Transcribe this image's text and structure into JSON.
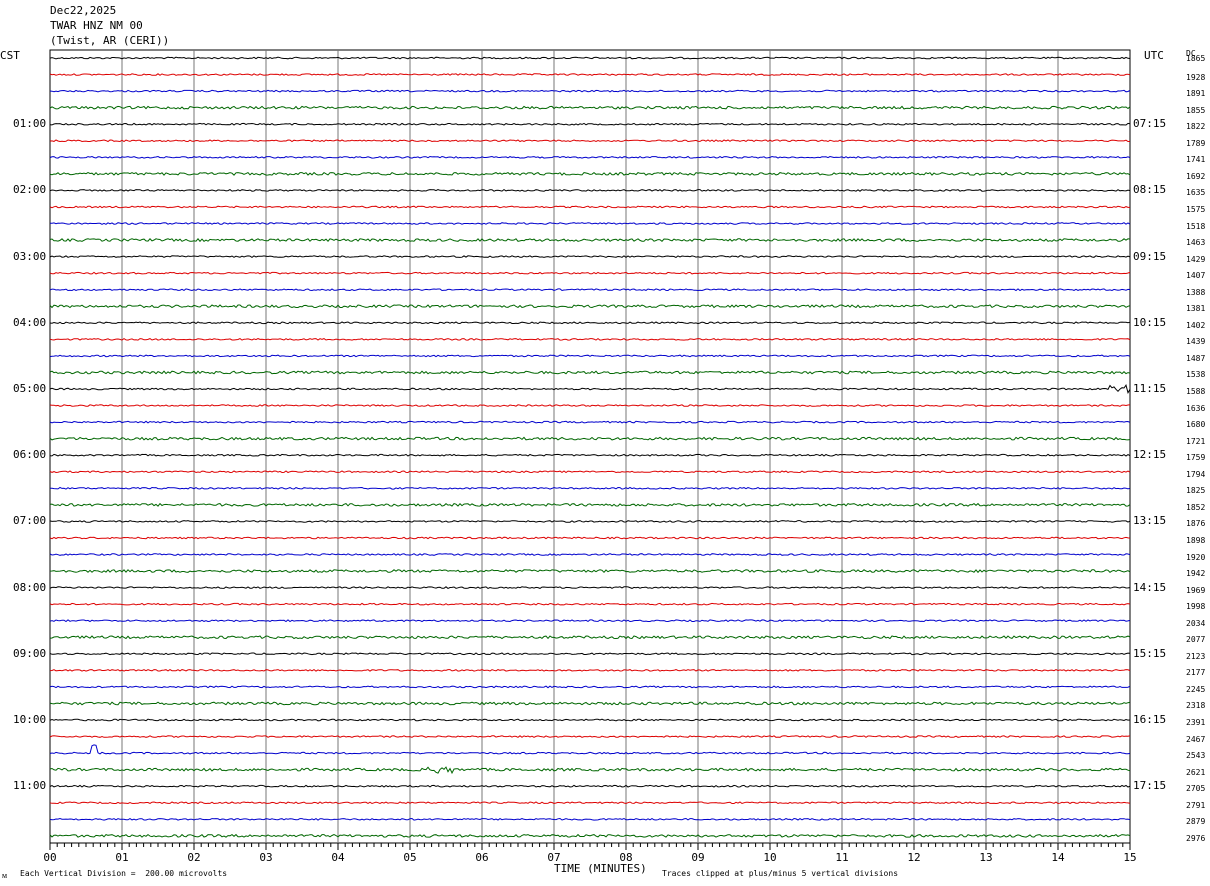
{
  "header": {
    "date": "Dec22,2025",
    "station": "TWAR HNZ NM 00",
    "location": "(Twist, AR (CERI))"
  },
  "axes": {
    "left_label": "CST",
    "right_label": "UTC",
    "dc_label": "DC",
    "x_title": "TIME (MINUTES)"
  },
  "footer": {
    "scale_note": "Each Vertical Division =  200.00 microvolts",
    "clip_note": "Traces clipped at plus/minus 5 vertical divisions",
    "corner_mark": "ᴍ"
  },
  "chart_data": {
    "type": "line",
    "title": "TWAR HNZ NM 00",
    "xlabel": "TIME (MINUTES)",
    "xlim": [
      0,
      15
    ],
    "x_ticks": [
      "00",
      "01",
      "02",
      "03",
      "04",
      "05",
      "06",
      "07",
      "08",
      "09",
      "10",
      "11",
      "12",
      "13",
      "14",
      "15"
    ],
    "trace_minutes": 15,
    "trace_colors": [
      "#000000",
      "#dd0000",
      "#0000cc",
      "#006600"
    ],
    "left_time_labels": [
      "01:00",
      "02:00",
      "03:00",
      "04:00",
      "05:00",
      "06:00",
      "07:00",
      "08:00",
      "09:00",
      "10:00",
      "11:00"
    ],
    "right_time_labels": [
      "07:15",
      "08:15",
      "09:15",
      "10:15",
      "11:15",
      "12:15",
      "13:15",
      "14:15",
      "15:15",
      "16:15",
      "17:15"
    ],
    "dc_offsets": [
      "1865",
      "1928",
      "1891",
      "1855",
      "1822",
      "1789",
      "1741",
      "1692",
      "1635",
      "1575",
      "1518",
      "1463",
      "1429",
      "1407",
      "1388",
      "1381",
      "1402",
      "1439",
      "1487",
      "1538",
      "1588",
      "1636",
      "1680",
      "1721",
      "1759",
      "1794",
      "1825",
      "1852",
      "1876",
      "1898",
      "1920",
      "1942",
      "1969",
      "1998",
      "2034",
      "2077",
      "2123",
      "2177",
      "2245",
      "2318",
      "2391",
      "2467",
      "2543",
      "2621",
      "2705",
      "2791",
      "2879",
      "2976"
    ],
    "events": [
      {
        "trace": 42,
        "minute": 0.62,
        "description": "spike"
      },
      {
        "trace": 43,
        "minute": 5.4,
        "description": "burst"
      },
      {
        "trace": 20,
        "minute": 14.9,
        "description": "burst"
      }
    ],
    "grid": true
  }
}
